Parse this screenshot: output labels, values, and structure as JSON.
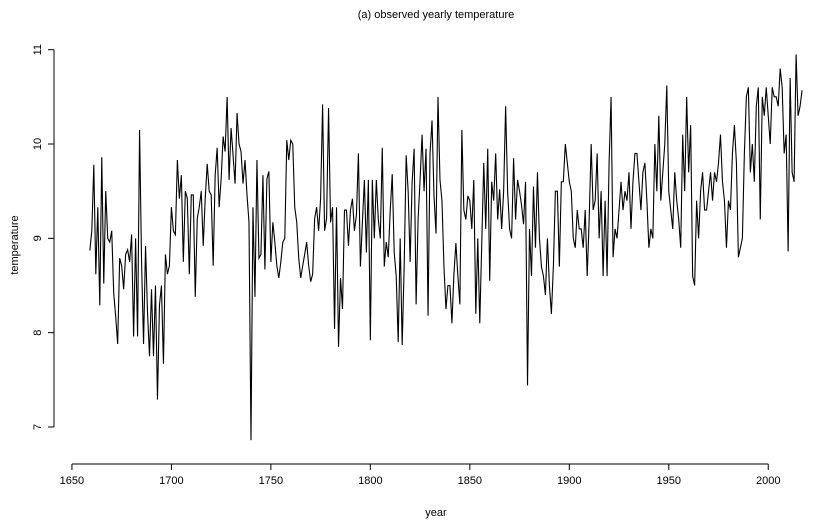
{
  "chart_data": {
    "type": "line",
    "title": "(a) observed yearly temperature",
    "x_label": "year",
    "y_label": "temperature",
    "x": [
      1659,
      1660,
      1661,
      1662,
      1663,
      1664,
      1665,
      1666,
      1667,
      1668,
      1669,
      1670,
      1671,
      1672,
      1673,
      1674,
      1675,
      1676,
      1677,
      1678,
      1679,
      1680,
      1681,
      1682,
      1683,
      1684,
      1685,
      1686,
      1687,
      1688,
      1689,
      1690,
      1691,
      1692,
      1693,
      1694,
      1695,
      1696,
      1697,
      1698,
      1699,
      1700,
      1701,
      1702,
      1703,
      1704,
      1705,
      1706,
      1707,
      1708,
      1709,
      1710,
      1711,
      1712,
      1713,
      1714,
      1715,
      1716,
      1717,
      1718,
      1719,
      1720,
      1721,
      1722,
      1723,
      1724,
      1725,
      1726,
      1727,
      1728,
      1729,
      1730,
      1731,
      1732,
      1733,
      1734,
      1735,
      1736,
      1737,
      1738,
      1739,
      1740,
      1741,
      1742,
      1743,
      1744,
      1745,
      1746,
      1747,
      1748,
      1749,
      1750,
      1751,
      1752,
      1753,
      1754,
      1755,
      1756,
      1757,
      1758,
      1759,
      1760,
      1761,
      1762,
      1763,
      1764,
      1765,
      1766,
      1767,
      1768,
      1769,
      1770,
      1771,
      1772,
      1773,
      1774,
      1775,
      1776,
      1777,
      1778,
      1779,
      1780,
      1781,
      1782,
      1783,
      1784,
      1785,
      1786,
      1787,
      1788,
      1789,
      1790,
      1791,
      1792,
      1793,
      1794,
      1795,
      1796,
      1797,
      1798,
      1799,
      1800,
      1801,
      1802,
      1803,
      1804,
      1805,
      1806,
      1807,
      1808,
      1809,
      1810,
      1811,
      1812,
      1813,
      1814,
      1815,
      1816,
      1817,
      1818,
      1819,
      1820,
      1821,
      1822,
      1823,
      1824,
      1825,
      1826,
      1827,
      1828,
      1829,
      1830,
      1831,
      1832,
      1833,
      1834,
      1835,
      1836,
      1837,
      1838,
      1839,
      1840,
      1841,
      1842,
      1843,
      1844,
      1845,
      1846,
      1847,
      1848,
      1849,
      1850,
      1851,
      1852,
      1853,
      1854,
      1855,
      1856,
      1857,
      1858,
      1859,
      1860,
      1861,
      1862,
      1863,
      1864,
      1865,
      1866,
      1867,
      1868,
      1869,
      1870,
      1871,
      1872,
      1873,
      1874,
      1875,
      1876,
      1877,
      1878,
      1879,
      1880,
      1881,
      1882,
      1883,
      1884,
      1885,
      1886,
      1887,
      1888,
      1889,
      1890,
      1891,
      1892,
      1893,
      1894,
      1895,
      1896,
      1897,
      1898,
      1899,
      1900,
      1901,
      1902,
      1903,
      1904,
      1905,
      1906,
      1907,
      1908,
      1909,
      1910,
      1911,
      1912,
      1913,
      1914,
      1915,
      1916,
      1917,
      1918,
      1919,
      1920,
      1921,
      1922,
      1923,
      1924,
      1925,
      1926,
      1927,
      1928,
      1929,
      1930,
      1931,
      1932,
      1933,
      1934,
      1935,
      1936,
      1937,
      1938,
      1939,
      1940,
      1941,
      1942,
      1943,
      1944,
      1945,
      1946,
      1947,
      1948,
      1949,
      1950,
      1951,
      1952,
      1953,
      1954,
      1955,
      1956,
      1957,
      1958,
      1959,
      1960,
      1961,
      1962,
      1963,
      1964,
      1965,
      1966,
      1967,
      1968,
      1969,
      1970,
      1971,
      1972,
      1973,
      1974,
      1975,
      1976,
      1977,
      1978,
      1979,
      1980,
      1981,
      1982,
      1983,
      1984,
      1985,
      1986,
      1987,
      1988,
      1989,
      1990,
      1991,
      1992,
      1993,
      1994,
      1995,
      1996,
      1997,
      1998,
      1999,
      2000,
      2001,
      2002,
      2003,
      2004,
      2005,
      2006,
      2007,
      2008,
      2009,
      2010,
      2011,
      2012,
      2013,
      2014,
      2015,
      2016,
      2017
    ],
    "series": [
      {
        "color": "#000000",
        "values": [
          8.87,
          9.08,
          9.78,
          8.62,
          9.33,
          8.29,
          9.86,
          8.52,
          9.5,
          9.0,
          8.96,
          9.08,
          8.42,
          8.17,
          7.88,
          8.79,
          8.71,
          8.46,
          8.83,
          8.88,
          8.75,
          9.04,
          7.96,
          9.0,
          7.96,
          10.15,
          8.75,
          7.88,
          8.92,
          8.21,
          7.75,
          8.46,
          7.75,
          8.5,
          7.29,
          8.29,
          8.5,
          7.67,
          8.83,
          8.62,
          8.71,
          9.33,
          9.08,
          9.04,
          9.83,
          9.42,
          9.67,
          8.75,
          9.5,
          9.42,
          8.62,
          9.46,
          9.46,
          8.38,
          9.21,
          9.33,
          9.5,
          8.92,
          9.42,
          9.79,
          9.5,
          9.46,
          8.71,
          9.67,
          9.96,
          9.33,
          9.63,
          10.08,
          9.92,
          10.5,
          9.62,
          10.17,
          9.88,
          9.58,
          10.33,
          10.0,
          9.92,
          9.58,
          9.83,
          9.46,
          9.17,
          6.86,
          9.33,
          8.38,
          9.83,
          8.79,
          8.83,
          9.67,
          8.67,
          9.63,
          9.71,
          8.75,
          9.17,
          8.96,
          8.71,
          8.58,
          8.75,
          8.96,
          9.0,
          10.04,
          9.83,
          10.04,
          10.0,
          9.33,
          9.17,
          8.79,
          8.58,
          8.71,
          8.83,
          8.96,
          8.71,
          8.54,
          8.62,
          9.21,
          9.33,
          9.08,
          9.42,
          10.42,
          9.08,
          9.21,
          10.38,
          9.17,
          9.33,
          8.04,
          9.33,
          7.85,
          8.58,
          8.25,
          9.3,
          9.3,
          8.92,
          9.3,
          9.42,
          9.08,
          9.25,
          9.9,
          8.7,
          9.17,
          9.62,
          8.85,
          9.62,
          7.92,
          9.62,
          9.0,
          9.62,
          9.2,
          9.0,
          9.96,
          8.7,
          8.96,
          8.8,
          9.3,
          9.68,
          8.85,
          8.6,
          7.9,
          9.0,
          7.87,
          8.7,
          9.88,
          9.5,
          8.75,
          9.6,
          9.95,
          8.3,
          9.2,
          9.62,
          10.1,
          9.5,
          9.95,
          8.18,
          9.9,
          10.25,
          9.45,
          9.05,
          10.5,
          9.62,
          9.4,
          8.7,
          8.25,
          8.5,
          8.5,
          8.1,
          8.62,
          8.95,
          8.6,
          8.3,
          10.15,
          9.3,
          9.2,
          9.45,
          9.4,
          9.1,
          9.62,
          8.2,
          9.0,
          8.1,
          8.95,
          9.8,
          9.1,
          9.95,
          8.55,
          9.6,
          9.4,
          9.9,
          9.2,
          9.52,
          9.1,
          9.5,
          10.4,
          9.5,
          9.1,
          9.0,
          9.85,
          9.2,
          9.62,
          9.5,
          9.35,
          9.15,
          9.6,
          7.44,
          9.1,
          8.6,
          9.55,
          8.9,
          9.7,
          9.0,
          8.7,
          8.6,
          8.4,
          9.0,
          8.5,
          8.2,
          8.7,
          9.5,
          9.5,
          8.7,
          9.6,
          9.6,
          10.0,
          9.8,
          9.6,
          9.5,
          9.0,
          8.9,
          9.3,
          9.1,
          9.1,
          8.9,
          9.3,
          8.6,
          9.2,
          10.0,
          9.3,
          9.4,
          9.9,
          9.0,
          9.5,
          8.6,
          9.4,
          8.6,
          9.8,
          10.5,
          8.8,
          9.1,
          9.0,
          9.3,
          9.6,
          9.3,
          9.5,
          9.4,
          9.7,
          9.1,
          9.6,
          9.9,
          9.9,
          9.6,
          9.3,
          9.7,
          9.8,
          9.4,
          8.9,
          9.1,
          9.0,
          10.0,
          9.5,
          10.3,
          9.4,
          9.7,
          10.0,
          10.62,
          9.5,
          9.3,
          9.1,
          9.7,
          9.4,
          9.2,
          8.9,
          10.1,
          9.5,
          10.5,
          9.7,
          10.2,
          8.6,
          8.5,
          9.4,
          9.0,
          9.5,
          9.7,
          9.3,
          9.3,
          9.5,
          9.7,
          9.4,
          9.7,
          9.6,
          9.8,
          10.1,
          9.6,
          9.4,
          8.9,
          9.4,
          9.3,
          9.9,
          10.2,
          9.8,
          8.8,
          8.9,
          9.0,
          9.9,
          10.5,
          10.6,
          9.7,
          10.0,
          9.6,
          10.4,
          10.6,
          9.2,
          10.5,
          10.3,
          10.6,
          10.3,
          10.0,
          10.6,
          10.5,
          10.5,
          10.4,
          10.8,
          10.6,
          9.9,
          10.1,
          8.86,
          10.7,
          9.7,
          9.6,
          10.95,
          10.3,
          10.4,
          10.57
        ]
      }
    ],
    "xlim": [
      1643,
      2023
    ],
    "ylim": [
      6.65,
      11.23
    ],
    "xticks": [
      1650,
      1700,
      1750,
      1800,
      1850,
      1900,
      1950,
      2000
    ],
    "yticks": [
      7,
      8,
      9,
      10,
      11
    ],
    "grid": false
  }
}
